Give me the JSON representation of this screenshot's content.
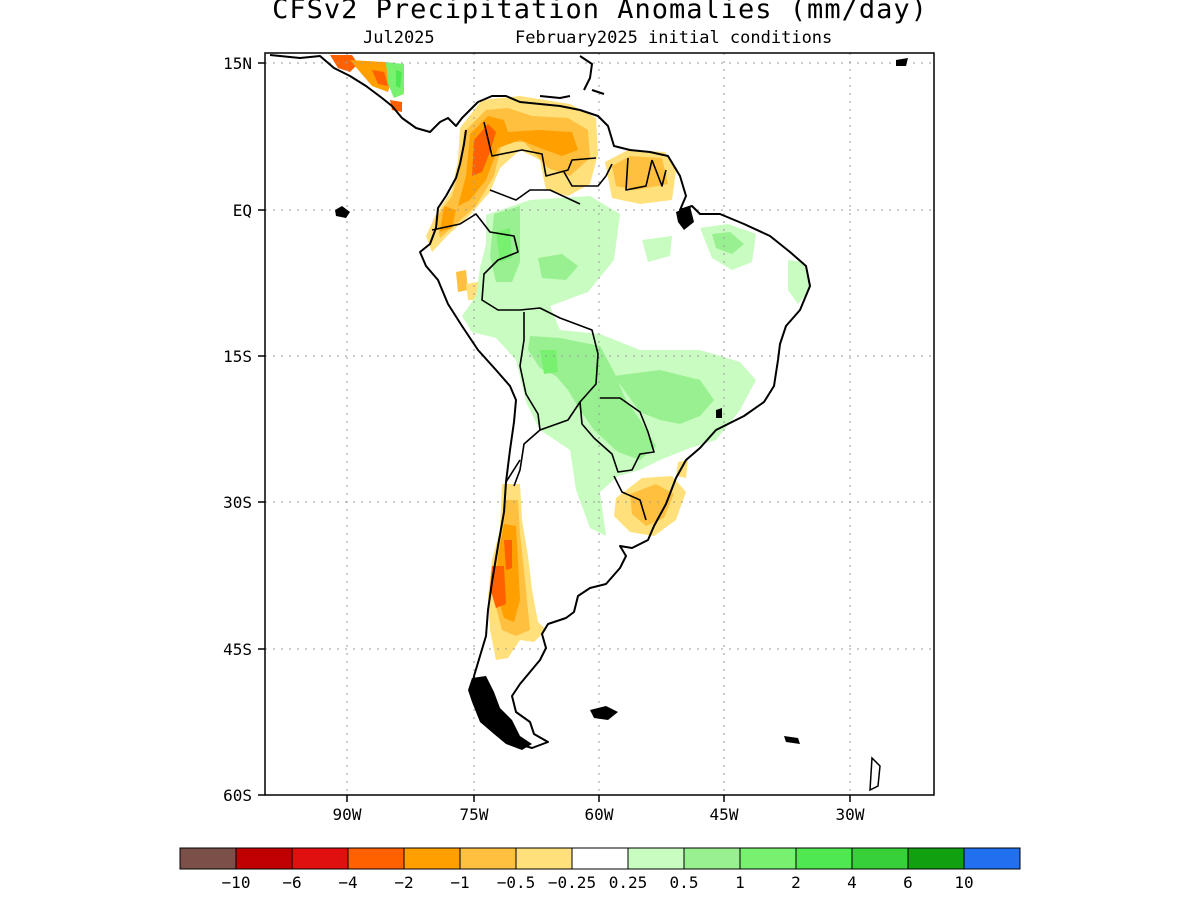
{
  "title": "CFSv2 Precipitation Anomalies (mm/day)",
  "subtitle_left": "Jul2025",
  "subtitle_right": "February2025 initial conditions",
  "map": {
    "lat_labels": [
      "15N",
      "EQ",
      "15S",
      "30S",
      "45S",
      "60S"
    ],
    "lon_labels": [
      "90W",
      "75W",
      "60W",
      "45W",
      "30W"
    ]
  },
  "colorbar": {
    "colors": [
      "#7b5049",
      "#c00000",
      "#e01010",
      "#ff6000",
      "#ffa000",
      "#ffc040",
      "#ffe07a",
      "#ffffff",
      "#c8fcc0",
      "#98f090",
      "#78f070",
      "#50e850",
      "#38d038",
      "#10a010",
      "#2070f0"
    ],
    "tick_labels": [
      "−10",
      "−6",
      "−4",
      "−2",
      "−1",
      "−0.5",
      "−0.25",
      "0.25",
      "0.5",
      "1",
      "2",
      "4",
      "6",
      "10"
    ]
  }
}
